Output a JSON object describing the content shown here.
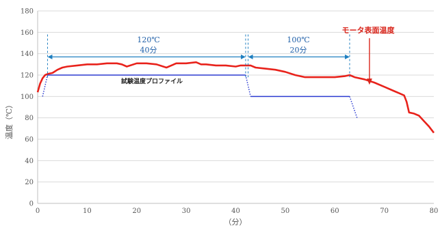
{
  "chart_data": {
    "type": "line",
    "xlabel": "（分）",
    "ylabel": "温度（℃）",
    "xlim": [
      0,
      80
    ],
    "ylim": [
      0,
      180
    ],
    "x_ticks": [
      "0",
      "10",
      "20",
      "30",
      "40",
      "50",
      "60",
      "70",
      "80"
    ],
    "y_ticks": [
      "0",
      "20",
      "40",
      "60",
      "80",
      "100",
      "120",
      "140",
      "160",
      "180"
    ],
    "grid": true,
    "series": [
      {
        "name": "モータ表面温度",
        "color": "#e8221b",
        "x": [
          0,
          0.5,
          1,
          1.5,
          2,
          3,
          4,
          5,
          6,
          8,
          10,
          12,
          14,
          16,
          17,
          18,
          20,
          22,
          24,
          26,
          27,
          28,
          30,
          32,
          33,
          34,
          36,
          38,
          40,
          41,
          42,
          43,
          44,
          46,
          48,
          50,
          52,
          54,
          56,
          58,
          60,
          62,
          63,
          64,
          66,
          68,
          70,
          72,
          73,
          74,
          74.5,
          75,
          76,
          77,
          78,
          79,
          80
        ],
        "y": [
          104,
          112,
          117,
          120,
          121,
          122,
          125,
          127,
          128,
          129,
          130,
          130,
          131,
          131,
          130,
          128,
          131,
          131,
          130,
          127,
          129,
          131,
          131,
          132,
          130,
          130,
          129,
          129,
          128,
          129,
          129,
          129,
          127,
          126,
          125,
          123,
          120,
          118,
          118,
          118,
          118,
          119,
          120,
          118,
          116,
          113,
          109,
          105,
          103,
          101,
          95,
          85,
          84,
          82,
          77,
          72,
          66
        ]
      },
      {
        "name": "試験温度プロファイル",
        "color": "#2b3bd1",
        "x": [
          1,
          2,
          42,
          43,
          63,
          64.5
        ],
        "y": [
          100,
          120,
          120,
          100,
          100,
          80
        ],
        "dotted_x_ranges": [
          [
            1,
            2
          ],
          [
            42,
            43
          ],
          [
            63,
            64.5
          ]
        ]
      }
    ],
    "annotations": [
      {
        "id": "span1",
        "label1": "120℃",
        "label2": "40分",
        "x_start": 2,
        "x_end": 42,
        "y": 137
      },
      {
        "id": "span2",
        "label1": "100℃",
        "label2": "20分",
        "x_start": 42.5,
        "x_end": 63,
        "y": 137
      },
      {
        "id": "motor",
        "label": "モータ表面温度",
        "x": 67,
        "y": 111
      },
      {
        "id": "profile",
        "label": "試験温度プロファイル",
        "x": 25,
        "y": 116
      }
    ]
  }
}
